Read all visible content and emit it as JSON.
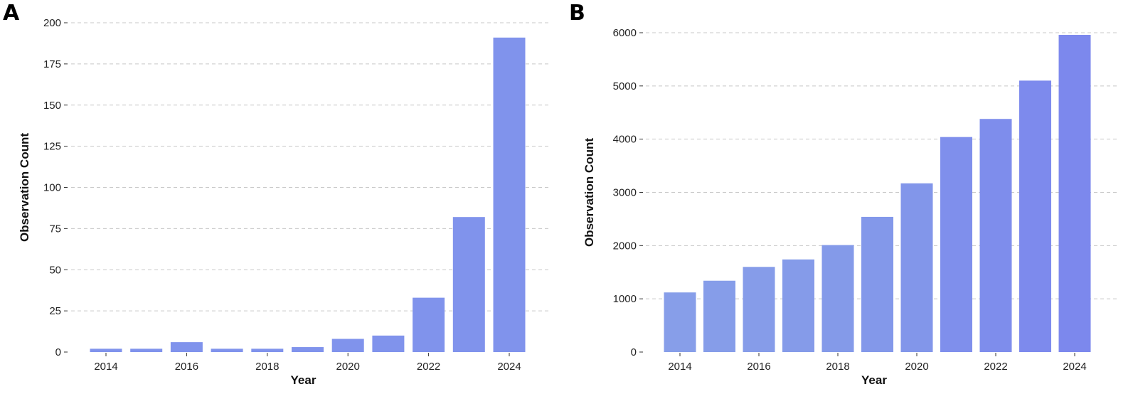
{
  "panels": [
    {
      "label": "A"
    },
    {
      "label": "B"
    }
  ],
  "chart_data": [
    {
      "type": "bar",
      "panel": "A",
      "title": "",
      "xlabel": "Year",
      "ylabel": "Observation Count",
      "x": [
        2014,
        2015,
        2016,
        2017,
        2018,
        2019,
        2020,
        2021,
        2022,
        2023,
        2024
      ],
      "values": [
        2,
        2,
        6,
        2,
        2,
        3,
        8,
        10,
        33,
        82,
        191
      ],
      "colors": [
        "#8093ec",
        "#8093ec",
        "#8093ec",
        "#8093ec",
        "#8093ec",
        "#8093ec",
        "#8093ec",
        "#8093ec",
        "#8093ec",
        "#8093ec",
        "#8093ec"
      ],
      "xticks": [
        2014,
        2016,
        2018,
        2020,
        2022,
        2024
      ],
      "yticks": [
        0,
        25,
        50,
        75,
        100,
        125,
        150,
        175,
        200
      ],
      "ylim": [
        0,
        200
      ],
      "grid": "horizontal dashed"
    },
    {
      "type": "bar",
      "panel": "B",
      "title": "",
      "xlabel": "Year",
      "ylabel": "Observation Count",
      "x": [
        2014,
        2015,
        2016,
        2017,
        2018,
        2019,
        2020,
        2021,
        2022,
        2023,
        2024
      ],
      "values": [
        1120,
        1340,
        1600,
        1740,
        2010,
        2540,
        3170,
        4040,
        4380,
        5100,
        5960
      ],
      "colors": [
        "#879ee9",
        "#869de9",
        "#869ce9",
        "#859be9",
        "#849ae9",
        "#8398ea",
        "#8296ea",
        "#7f8fec",
        "#7e8dec",
        "#7d8aed",
        "#7c88ed"
      ],
      "xticks": [
        2014,
        2016,
        2018,
        2020,
        2022,
        2024
      ],
      "yticks": [
        0,
        1000,
        2000,
        3000,
        4000,
        5000,
        6000
      ],
      "ylim": [
        0,
        6000
      ],
      "grid": "horizontal dashed"
    }
  ]
}
